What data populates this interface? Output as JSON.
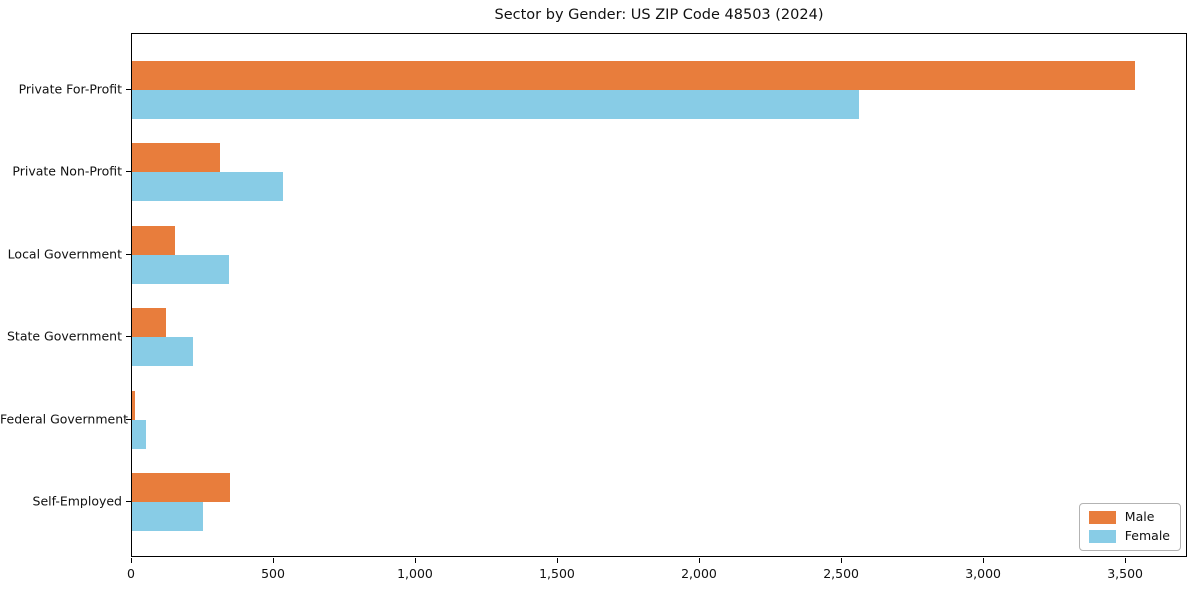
{
  "chart_data": {
    "type": "bar",
    "orientation": "horizontal",
    "title": "Sector by Gender: US ZIP Code 48503 (2024)",
    "categories": [
      "Private For-Profit",
      "Private Non-Profit",
      "Local Government",
      "State Government",
      "Federal Government",
      "Self-Employed"
    ],
    "series": [
      {
        "name": "Male",
        "color": "#e87d3c",
        "values": [
          3530,
          310,
          150,
          120,
          10,
          345
        ]
      },
      {
        "name": "Female",
        "color": "#88cce6",
        "values": [
          2560,
          530,
          340,
          215,
          50,
          250
        ]
      }
    ],
    "xlabel": "",
    "ylabel": "",
    "xlim": [
      0,
      3718
    ],
    "xticks": [
      0,
      500,
      1000,
      1500,
      2000,
      2500,
      3000,
      3500
    ],
    "xtick_labels": [
      "0",
      "500",
      "1,000",
      "1,500",
      "2,000",
      "2,500",
      "3,000",
      "3,500"
    ],
    "grid": false,
    "legend_position": "lower right",
    "background": "#ffffff",
    "spine_color": "#000000"
  }
}
